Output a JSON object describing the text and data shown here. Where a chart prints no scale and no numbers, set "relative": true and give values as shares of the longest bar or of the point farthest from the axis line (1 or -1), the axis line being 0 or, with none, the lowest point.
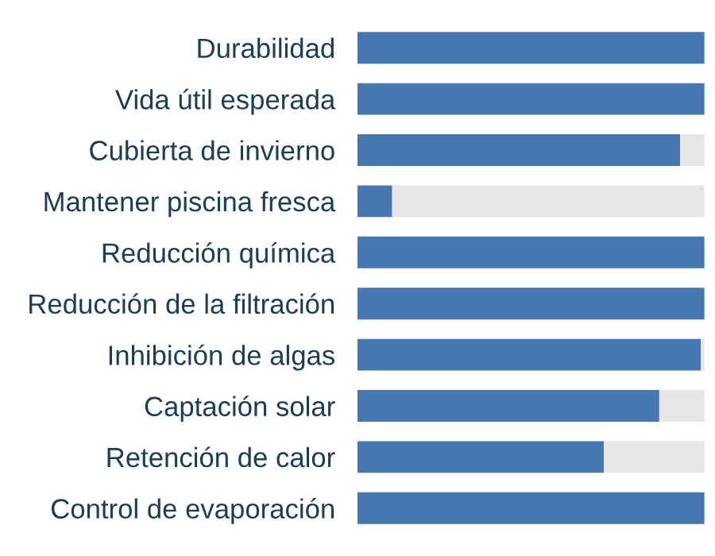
{
  "chart_data": {
    "type": "bar",
    "orientation": "horizontal",
    "stacked": true,
    "relative": true,
    "categories": [
      "Durabilidad",
      "Vida útil esperada",
      "Cubierta de invierno",
      "Mantener piscina fresca",
      "Reducción química",
      "Reducción de la filtración",
      "Inhibición de algas",
      "Captación solar",
      "Retención de calor",
      "Control de evaporación"
    ],
    "series": [
      {
        "color": "#4677b0",
        "values": [
          1,
          1,
          0.93,
          0.1,
          1,
          1,
          0.99,
          0.87,
          0.71,
          1
        ]
      },
      {
        "color": "#e6e6e6",
        "values": [
          0,
          0,
          0.07,
          0.9,
          0,
          0,
          0.01,
          0.13,
          0.29,
          0
        ]
      }
    ],
    "grid": false,
    "legend": false
  }
}
